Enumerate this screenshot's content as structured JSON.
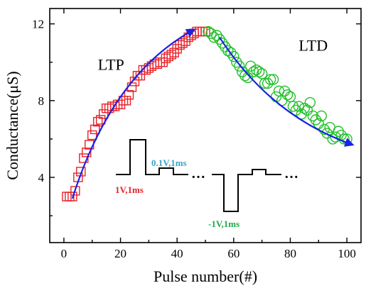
{
  "chart_data": {
    "type": "scatter",
    "xlabel": "Pulse number(#)",
    "ylabel": "Conductance(μS)",
    "xlim": [
      -5,
      105
    ],
    "ylim": [
      0.6,
      12.8
    ],
    "xticks": [
      0,
      20,
      40,
      60,
      80,
      100
    ],
    "yticks": [
      4,
      8,
      12
    ],
    "grid": false,
    "colors": {
      "ltp": "#e8232a",
      "ltd": "#22c02a",
      "arrow": "#1a22e6",
      "pulse_ltp": "#e8232a",
      "pulse_small": "#3aa3c8",
      "pulse_ltd": "#22a84a"
    },
    "series": [
      {
        "name": "LTP",
        "marker": "square",
        "x": [
          1,
          2,
          3,
          4,
          5,
          6,
          7,
          8,
          9,
          10,
          11,
          12,
          13,
          14,
          15,
          16,
          17,
          18,
          19,
          20,
          21,
          22,
          23,
          24,
          25,
          26,
          27,
          28,
          29,
          30,
          31,
          32,
          33,
          34,
          35,
          36,
          37,
          38,
          39,
          40,
          41,
          42,
          43,
          44,
          45,
          46,
          47,
          48,
          49,
          50
        ],
        "y": [
          3.0,
          3.0,
          3.0,
          3.3,
          4.0,
          4.3,
          5.0,
          5.3,
          5.7,
          6.2,
          6.5,
          6.9,
          7.0,
          7.3,
          7.6,
          7.6,
          7.7,
          7.7,
          7.8,
          7.8,
          8.0,
          8.0,
          8.3,
          8.7,
          9.0,
          9.3,
          9.3,
          9.6,
          9.6,
          9.7,
          9.8,
          9.9,
          9.9,
          10.0,
          10.0,
          10.2,
          10.3,
          10.4,
          10.5,
          10.7,
          10.9,
          11.0,
          11.1,
          11.3,
          11.4,
          11.5,
          11.6,
          11.6,
          11.6,
          11.6
        ]
      },
      {
        "name": "LTD",
        "marker": "circle",
        "x": [
          51,
          52,
          53,
          54,
          55,
          56,
          57,
          58,
          59,
          60,
          61,
          62,
          63,
          64,
          65,
          66,
          67,
          68,
          69,
          70,
          71,
          72,
          73,
          74,
          75,
          76,
          77,
          78,
          79,
          80,
          81,
          82,
          83,
          84,
          85,
          86,
          87,
          88,
          89,
          90,
          91,
          92,
          93,
          94,
          95,
          96,
          97,
          98,
          99,
          100
        ],
        "y": [
          11.6,
          11.5,
          11.3,
          11.4,
          11.2,
          11.0,
          10.8,
          10.6,
          10.5,
          10.3,
          10.0,
          9.8,
          9.5,
          9.3,
          9.2,
          9.8,
          9.5,
          9.6,
          9.5,
          9.4,
          8.9,
          8.9,
          9.1,
          9.1,
          8.2,
          8.5,
          8.0,
          8.5,
          8.3,
          8.2,
          7.7,
          7.5,
          7.7,
          7.3,
          7.6,
          7.5,
          7.9,
          7.2,
          7.0,
          6.8,
          7.2,
          6.5,
          6.3,
          6.6,
          6.0,
          6.1,
          6.4,
          6.2,
          6.0,
          6.0
        ]
      }
    ],
    "annotations": [
      {
        "text": "LTP",
        "x": 12,
        "y": 9.6
      },
      {
        "text": "LTD",
        "x": 83,
        "y": 10.6
      }
    ],
    "arrows": [
      {
        "from": [
          3,
          2.9
        ],
        "to": [
          46,
          11.7
        ],
        "control": [
          17,
          9.4
        ]
      },
      {
        "from": [
          55,
          11.3
        ],
        "to": [
          102,
          5.7
        ],
        "control": [
          73,
          7.2
        ]
      }
    ],
    "pulse_inset": {
      "labels": [
        "1V,1ms",
        "0.1V,1ms",
        "-1V,1ms"
      ],
      "ellipsis": [
        "…",
        "…"
      ]
    }
  }
}
